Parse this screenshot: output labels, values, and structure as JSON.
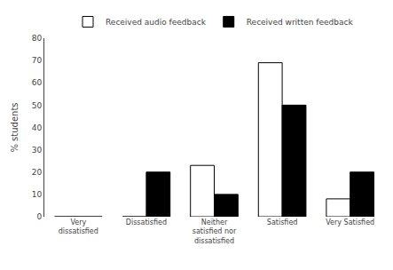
{
  "chart_data": {
    "type": "bar",
    "categories": [
      "Very\ndissatisfied",
      "Dissatisfied",
      "Neither\nsatisfied nor\ndissatisfied",
      "Satisfied",
      "Very Satisfied"
    ],
    "series": [
      {
        "name": "Received audio feedback",
        "color": "#ffffff",
        "values": [
          0,
          0,
          23,
          69,
          8
        ]
      },
      {
        "name": "Received written feedback",
        "color": "#000000",
        "values": [
          0,
          20,
          10,
          50,
          20
        ]
      }
    ],
    "ylabel": "% students",
    "ylim": [
      0,
      80
    ],
    "yticks": [
      0,
      10,
      20,
      30,
      40,
      50,
      60,
      70,
      80
    ],
    "grid": false,
    "legend": "upper center"
  }
}
